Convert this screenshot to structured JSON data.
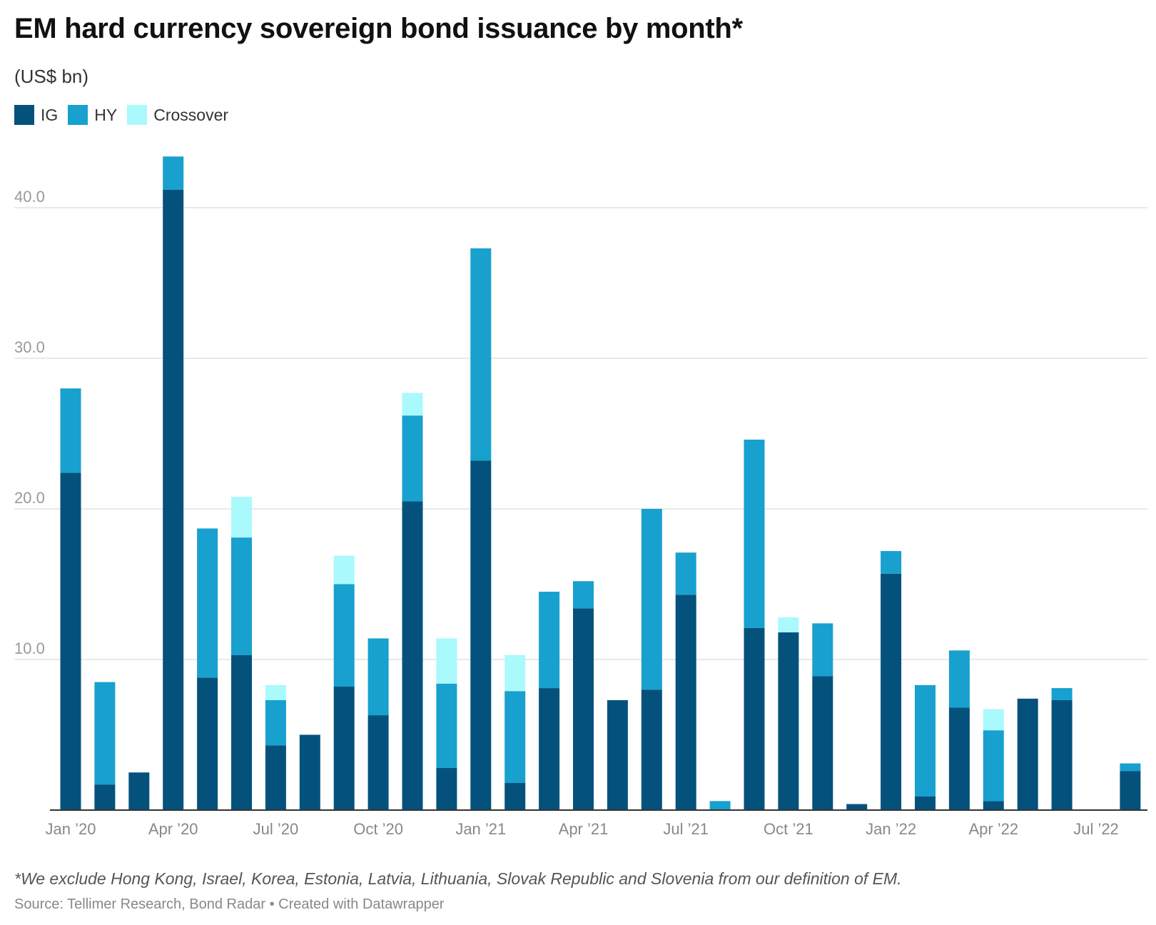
{
  "chart_data": {
    "type": "bar",
    "stacked": true,
    "title": "EM hard currency sovereign bond issuance by month*",
    "subtitle": "(US$ bn)",
    "categories": [
      "Jan 2020",
      "Feb 2020",
      "Mar 2020",
      "Apr 2020",
      "May 2020",
      "Jun 2020",
      "Jul 2020",
      "Aug 2020",
      "Sep 2020",
      "Oct 2020",
      "Nov 2020",
      "Dec 2020",
      "Jan 2021",
      "Feb 2021",
      "Mar 2021",
      "Apr 2021",
      "May 2021",
      "Jun 2021",
      "Jul 2021",
      "Aug 2021",
      "Sep 2021",
      "Oct 2021",
      "Nov 2021",
      "Dec 2021",
      "Jan 2022",
      "Feb 2022",
      "Mar 2022",
      "Apr 2022",
      "May 2022",
      "Jun 2022",
      "Jul 2022",
      "Aug 2022"
    ],
    "x_tick_labels": [
      {
        "index": 0,
        "label": "Jan ’20"
      },
      {
        "index": 3,
        "label": "Apr ’20"
      },
      {
        "index": 6,
        "label": "Jul ’20"
      },
      {
        "index": 9,
        "label": "Oct ’20"
      },
      {
        "index": 12,
        "label": "Jan ’21"
      },
      {
        "index": 15,
        "label": "Apr ’21"
      },
      {
        "index": 18,
        "label": "Jul ’21"
      },
      {
        "index": 21,
        "label": "Oct ’21"
      },
      {
        "index": 24,
        "label": "Jan ’22"
      },
      {
        "index": 27,
        "label": "Apr ’22"
      },
      {
        "index": 30,
        "label": "Jul ’22"
      }
    ],
    "y_ticks": [
      {
        "value": 10,
        "label": "10.0"
      },
      {
        "value": 20,
        "label": "20.0"
      },
      {
        "value": 30,
        "label": "30.0"
      },
      {
        "value": 40,
        "label": "40.0"
      }
    ],
    "ylim": [
      0,
      46
    ],
    "grid": true,
    "legend_position": "top-left",
    "series": [
      {
        "name": "IG",
        "color": "#04527c",
        "values": [
          22.4,
          1.7,
          2.5,
          41.2,
          8.8,
          10.3,
          4.3,
          5.0,
          8.2,
          6.3,
          20.5,
          2.8,
          23.2,
          1.8,
          8.1,
          13.4,
          7.3,
          8.0,
          14.3,
          0,
          12.1,
          11.8,
          8.9,
          0.4,
          15.7,
          0.9,
          6.8,
          0.6,
          7.4,
          7.3,
          0,
          2.6
        ]
      },
      {
        "name": "HY",
        "color": "#18a0cf",
        "values": [
          5.6,
          6.8,
          0,
          2.2,
          9.9,
          7.8,
          3.0,
          0,
          6.8,
          5.1,
          5.7,
          5.6,
          14.1,
          6.1,
          6.4,
          1.8,
          0,
          12.0,
          2.8,
          0.6,
          12.5,
          0,
          3.5,
          0,
          1.5,
          7.4,
          3.8,
          4.7,
          0,
          0.8,
          0,
          0.5
        ]
      },
      {
        "name": "Crossover",
        "color": "#aaf9fd",
        "values": [
          0,
          0,
          0,
          0,
          0,
          2.7,
          1.0,
          0,
          1.9,
          0,
          1.5,
          3.0,
          0,
          2.4,
          0,
          0,
          0,
          0,
          0,
          0,
          0,
          1.0,
          0,
          0,
          0,
          0,
          0,
          1.4,
          0,
          0,
          0,
          0
        ]
      }
    ]
  },
  "footnote": "*We exclude Hong Kong, Israel, Korea, Estonia, Latvia, Lithuania, Slovak Republic and Slovenia from our definition of EM.",
  "source": "Source: Tellimer Research, Bond Radar • Created with Datawrapper"
}
